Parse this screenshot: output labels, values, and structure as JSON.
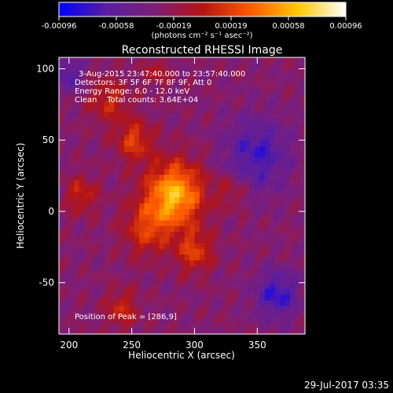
{
  "chart_data": {
    "type": "heatmap",
    "title": "Reconstructed RHESSI Image",
    "xlabel": "Heliocentric X (arcsec)",
    "ylabel": "Heliocentric Y (arcsec)",
    "xlim": [
      192,
      388
    ],
    "ylim": [
      -86,
      108
    ],
    "xticks": [
      200,
      250,
      300,
      350
    ],
    "yticks": [
      100,
      50,
      0,
      -50
    ],
    "colorbar": {
      "ticks": [
        "-0.00096",
        "-0.00058",
        "-0.00019",
        "0.00019",
        "0.00058",
        "0.00096"
      ],
      "units": "(photons cm⁻² s⁻¹ asec⁻²)",
      "range": [
        -0.00096,
        0.00096
      ],
      "colormap": [
        "#0000ff",
        "#5a1ea0",
        "#7d1e78",
        "#b41414",
        "#ff5a00",
        "#ffc800",
        "#ffffff"
      ]
    },
    "annotations": {
      "time": "3-Aug-2015 23:47:40.000 to 23:57:40.000",
      "detectors": "Detectors: 3F 5F 6F 7F 8F 9F, Att 0",
      "energy": "Energy Range: 6.0 - 12.0 keV",
      "method": "Clean    Total counts: 3.64E+04",
      "peak": "Position of Peak = [286,9]"
    },
    "sources": [
      {
        "x": 284,
        "y": 12,
        "sigma": 16,
        "amp": 0.00088
      },
      {
        "x": 300,
        "y": -28,
        "sigma": 10,
        "amp": 0.00045
      },
      {
        "x": 262,
        "y": -12,
        "sigma": 13,
        "amp": 0.0004
      },
      {
        "x": 252,
        "y": 50,
        "sigma": 10,
        "amp": 0.00045
      },
      {
        "x": 232,
        "y": 78,
        "sigma": 11,
        "amp": 0.00035
      },
      {
        "x": 210,
        "y": 12,
        "sigma": 9,
        "amp": 0.00035
      },
      {
        "x": 242,
        "y": -68,
        "sigma": 9,
        "amp": 0.00035
      },
      {
        "x": 330,
        "y": 15,
        "sigma": 9,
        "amp": 0.00025
      },
      {
        "x": 270,
        "y": 98,
        "sigma": 7,
        "amp": 0.00025
      },
      {
        "x": 366,
        "y": -58,
        "sigma": 12,
        "amp": -0.0005
      },
      {
        "x": 350,
        "y": 40,
        "sigma": 18,
        "amp": -0.00045
      },
      {
        "x": 200,
        "y": 96,
        "sigma": 8,
        "amp": -0.0004
      }
    ]
  },
  "footer": {
    "timestamp": "29-Jul-2017 03:35"
  }
}
